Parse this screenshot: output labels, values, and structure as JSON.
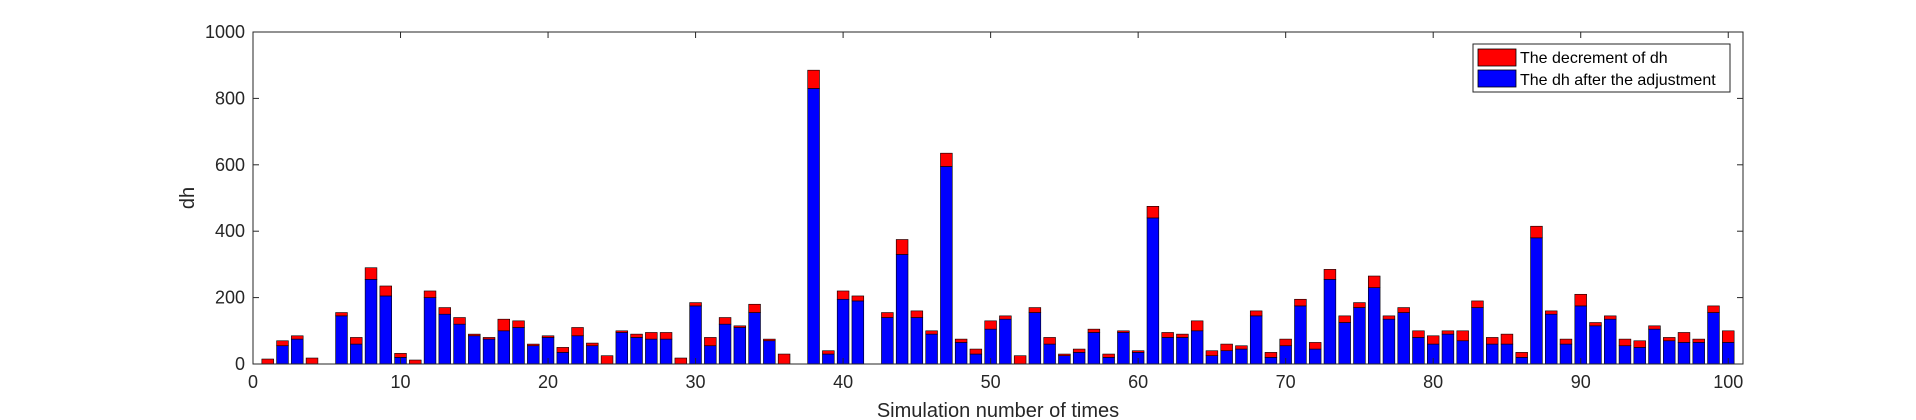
{
  "chart_data": {
    "type": "bar",
    "stacked": true,
    "xlabel": "Simulation number of times",
    "ylabel": "dh",
    "xlim": [
      0,
      101
    ],
    "ylim": [
      0,
      1000
    ],
    "xticks": [
      0,
      10,
      20,
      30,
      40,
      50,
      60,
      70,
      80,
      90,
      100
    ],
    "yticks": [
      0,
      200,
      400,
      600,
      800,
      1000
    ],
    "grid": false,
    "legend_position": "top-right",
    "x": [
      1,
      2,
      3,
      4,
      5,
      6,
      7,
      8,
      9,
      10,
      11,
      12,
      13,
      14,
      15,
      16,
      17,
      18,
      19,
      20,
      21,
      22,
      23,
      24,
      25,
      26,
      27,
      28,
      29,
      30,
      31,
      32,
      33,
      34,
      35,
      36,
      37,
      38,
      39,
      40,
      41,
      42,
      43,
      44,
      45,
      46,
      47,
      48,
      49,
      50,
      51,
      52,
      53,
      54,
      55,
      56,
      57,
      58,
      59,
      60,
      61,
      62,
      63,
      64,
      65,
      66,
      67,
      68,
      69,
      70,
      71,
      72,
      73,
      74,
      75,
      76,
      77,
      78,
      79,
      80,
      81,
      82,
      83,
      84,
      85,
      86,
      87,
      88,
      89,
      90,
      91,
      92,
      93,
      94,
      95,
      96,
      97,
      98,
      99,
      100
    ],
    "series": [
      {
        "name": "The dh after the adjustment",
        "color": "#0000FF",
        "values": [
          0,
          55,
          75,
          0,
          0,
          145,
          60,
          255,
          205,
          20,
          0,
          200,
          150,
          120,
          85,
          75,
          100,
          110,
          55,
          80,
          35,
          85,
          55,
          0,
          95,
          80,
          75,
          75,
          0,
          175,
          55,
          120,
          110,
          155,
          70,
          0,
          0,
          830,
          30,
          195,
          190,
          0,
          140,
          330,
          140,
          90,
          595,
          65,
          30,
          105,
          135,
          0,
          155,
          60,
          25,
          35,
          95,
          20,
          95,
          35,
          440,
          80,
          80,
          100,
          25,
          40,
          45,
          145,
          20,
          55,
          175,
          45,
          255,
          125,
          170,
          230,
          135,
          155,
          80,
          60,
          90,
          70,
          170,
          60,
          60,
          20,
          380,
          150,
          60,
          175,
          115,
          135,
          55,
          50,
          105,
          70,
          65,
          65,
          155,
          65
        ]
      },
      {
        "name": "The decrement of dh",
        "color": "#FF0000",
        "values": [
          15,
          15,
          10,
          18,
          0,
          10,
          20,
          35,
          30,
          12,
          12,
          20,
          20,
          20,
          5,
          5,
          35,
          20,
          5,
          5,
          15,
          25,
          8,
          25,
          5,
          10,
          20,
          20,
          18,
          10,
          25,
          20,
          5,
          25,
          5,
          30,
          0,
          55,
          10,
          25,
          15,
          0,
          15,
          45,
          20,
          10,
          40,
          10,
          15,
          25,
          10,
          25,
          15,
          20,
          5,
          10,
          10,
          10,
          5,
          5,
          35,
          15,
          10,
          30,
          15,
          20,
          10,
          15,
          15,
          20,
          20,
          20,
          30,
          20,
          15,
          35,
          10,
          15,
          20,
          25,
          10,
          30,
          20,
          20,
          30,
          15,
          35,
          10,
          15,
          35,
          10,
          10,
          20,
          20,
          10,
          10,
          30,
          10,
          20,
          35
        ]
      }
    ]
  }
}
